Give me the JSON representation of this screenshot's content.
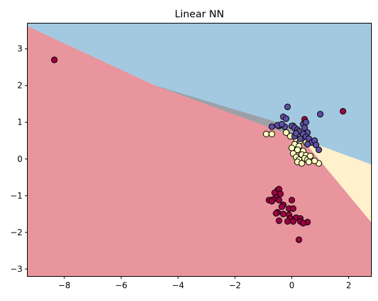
{
  "chart_data": {
    "type": "scatter",
    "title": "Linear NN",
    "xlabel": "",
    "ylabel": "",
    "xlim": [
      -9.3,
      2.8
    ],
    "ylim": [
      -3.2,
      3.7
    ],
    "grid": false,
    "xticks": [
      -8,
      -6,
      -4,
      -2,
      0,
      2
    ],
    "yticks": [
      -3,
      -2,
      -1,
      0,
      1,
      2,
      3
    ],
    "xtick_labels": [
      "−8",
      "−6",
      "−4",
      "−2",
      "0",
      "2"
    ],
    "ytick_labels": [
      "−3",
      "−2",
      "−1",
      "0",
      "1",
      "2",
      "3"
    ],
    "decision_regions": [
      {
        "class": 0,
        "color": "#d53e4f",
        "alpha": 0.55,
        "polygon": [
          [
            -9.3,
            3.62
          ],
          [
            -4.8,
            2.0
          ],
          [
            0.0,
            0.88
          ],
          [
            2.8,
            -1.73
          ],
          [
            2.8,
            -3.2
          ],
          [
            -9.3,
            -3.2
          ]
        ]
      },
      {
        "class": 1,
        "color": "#fee08b",
        "alpha": 0.45,
        "polygon": [
          [
            -4.8,
            2.0
          ],
          [
            2.8,
            -0.15
          ],
          [
            2.8,
            -1.73
          ],
          [
            0.0,
            0.88
          ]
        ]
      },
      {
        "class": 2,
        "color": "#3288bd",
        "alpha": 0.45,
        "polygon": [
          [
            -9.3,
            3.62
          ],
          [
            -9.3,
            3.7
          ],
          [
            2.8,
            3.7
          ],
          [
            2.8,
            -0.15
          ],
          [
            -4.8,
            2.0
          ]
        ]
      }
    ],
    "series": [
      {
        "class": 0,
        "color": "#9e0142",
        "points": [
          [
            -8.35,
            2.7
          ],
          [
            1.8,
            1.3
          ],
          [
            0.45,
            1.08
          ],
          [
            -0.5,
            -0.85
          ],
          [
            -0.45,
            -0.82
          ],
          [
            -0.6,
            -0.92
          ],
          [
            -0.4,
            -0.95
          ],
          [
            -0.55,
            -1.05
          ],
          [
            -0.65,
            -1.1
          ],
          [
            -0.8,
            -1.12
          ],
          [
            -0.45,
            -1.12
          ],
          [
            -0.7,
            -1.15
          ],
          [
            0.0,
            -1.12
          ],
          [
            -0.3,
            -1.25
          ],
          [
            -0.35,
            -1.3
          ],
          [
            -0.1,
            -1.35
          ],
          [
            0.05,
            -1.35
          ],
          [
            -0.5,
            -1.45
          ],
          [
            -0.55,
            -1.48
          ],
          [
            -0.3,
            -1.5
          ],
          [
            -0.1,
            -1.52
          ],
          [
            0.15,
            -1.6
          ],
          [
            -0.05,
            -1.62
          ],
          [
            -0.45,
            -1.68
          ],
          [
            0.3,
            -1.62
          ],
          [
            0.3,
            -1.7
          ],
          [
            0.55,
            -1.72
          ],
          [
            0.4,
            -1.75
          ],
          [
            0.05,
            -1.7
          ],
          [
            -0.15,
            -1.7
          ],
          [
            0.25,
            -2.2
          ]
        ]
      },
      {
        "class": 1,
        "color": "#ffffbf",
        "points": [
          [
            -0.9,
            0.68
          ],
          [
            -0.7,
            0.68
          ],
          [
            -0.2,
            0.72
          ],
          [
            0.05,
            0.9
          ],
          [
            0.35,
            0.72
          ],
          [
            -0.05,
            0.62
          ],
          [
            0.15,
            0.55
          ],
          [
            0.3,
            0.5
          ],
          [
            0.5,
            0.45
          ],
          [
            0.1,
            0.4
          ],
          [
            0.25,
            0.35
          ],
          [
            0.0,
            0.3
          ],
          [
            0.2,
            0.25
          ],
          [
            0.4,
            0.22
          ],
          [
            0.05,
            0.15
          ],
          [
            0.35,
            0.12
          ],
          [
            0.5,
            0.1
          ],
          [
            0.15,
            0.05
          ],
          [
            0.45,
            0.02
          ],
          [
            0.25,
            -0.02
          ],
          [
            0.55,
            -0.02
          ],
          [
            0.2,
            -0.08
          ],
          [
            0.6,
            -0.08
          ],
          [
            0.35,
            -0.12
          ],
          [
            0.95,
            -0.12
          ],
          [
            0.8,
            -0.05
          ],
          [
            0.65,
            0.08
          ]
        ]
      },
      {
        "class": 2,
        "color": "#5e4fa2",
        "points": [
          [
            -0.15,
            1.42
          ],
          [
            -0.3,
            1.15
          ],
          [
            -0.2,
            1.1
          ],
          [
            -0.45,
            0.9
          ],
          [
            -0.7,
            0.88
          ],
          [
            -0.25,
            0.88
          ],
          [
            -0.5,
            0.92
          ],
          [
            -0.35,
            0.95
          ],
          [
            0.0,
            0.9
          ],
          [
            0.1,
            0.85
          ],
          [
            0.2,
            0.8
          ],
          [
            0.25,
            0.75
          ],
          [
            0.4,
            0.95
          ],
          [
            0.45,
            0.85
          ],
          [
            0.55,
            0.72
          ],
          [
            0.4,
            0.68
          ],
          [
            0.5,
            0.6
          ],
          [
            0.6,
            0.55
          ],
          [
            0.7,
            0.45
          ],
          [
            0.8,
            0.5
          ],
          [
            0.85,
            0.38
          ],
          [
            0.55,
            0.4
          ],
          [
            0.1,
            0.62
          ],
          [
            1.0,
            1.22
          ],
          [
            0.95,
            0.25
          ],
          [
            0.5,
            1.0
          ],
          [
            0.3,
            0.55
          ],
          [
            0.15,
            0.7
          ]
        ]
      }
    ]
  }
}
